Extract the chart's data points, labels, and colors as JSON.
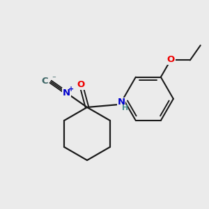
{
  "background_color": "#ebebeb",
  "bond_color": "#1a1a1a",
  "C_color": "#3a6464",
  "N_color": "#0000cc",
  "O_color": "#ee0000",
  "NH_color": "#4a9090",
  "figsize": [
    3.0,
    3.0
  ],
  "dpi": 100,
  "xlim": [
    0,
    300
  ],
  "ylim": [
    0,
    300
  ]
}
